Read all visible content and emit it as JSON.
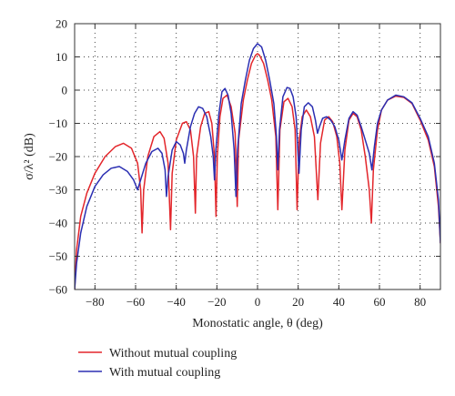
{
  "chart_data": {
    "type": "line",
    "xlabel": "Monostatic angle, θ (deg)",
    "ylabel": "σ/λ² (dB)",
    "xlim": [
      -90,
      90
    ],
    "ylim": [
      -60,
      20
    ],
    "xticks": [
      -80,
      -60,
      -40,
      -20,
      0,
      20,
      40,
      60,
      80
    ],
    "yticks": [
      20,
      10,
      0,
      -10,
      -20,
      -30,
      -40,
      -50,
      -60
    ],
    "xtick_labels": [
      "−80",
      "−60",
      "−40",
      "−20",
      "0",
      "20",
      "40",
      "60",
      "80"
    ],
    "ytick_labels": [
      "20",
      "10",
      "0",
      "−10",
      "−20",
      "−30",
      "−40",
      "−50",
      "−60"
    ],
    "grid": "dotted",
    "legend_position": "below plot, left",
    "series": [
      {
        "name": "Without mutual coupling",
        "color": "#e3262b",
        "points": [
          [
            -90,
            -60
          ],
          [
            -89,
            -48
          ],
          [
            -87,
            -38
          ],
          [
            -84,
            -31
          ],
          [
            -80,
            -25
          ],
          [
            -75,
            -20
          ],
          [
            -70,
            -17
          ],
          [
            -66,
            -16
          ],
          [
            -62,
            -17.5
          ],
          [
            -59,
            -22
          ],
          [
            -57.5,
            -30
          ],
          [
            -56.8,
            -43
          ],
          [
            -56,
            -30
          ],
          [
            -54,
            -20
          ],
          [
            -51,
            -14
          ],
          [
            -48,
            -12.5
          ],
          [
            -46,
            -14.5
          ],
          [
            -44,
            -22
          ],
          [
            -42.8,
            -42
          ],
          [
            -42,
            -25
          ],
          [
            -40,
            -15
          ],
          [
            -37,
            -10
          ],
          [
            -35,
            -9.5
          ],
          [
            -33,
            -12
          ],
          [
            -31.5,
            -20
          ],
          [
            -30.6,
            -37
          ],
          [
            -30,
            -20
          ],
          [
            -28,
            -11
          ],
          [
            -26,
            -7
          ],
          [
            -24,
            -6.5
          ],
          [
            -22.5,
            -10
          ],
          [
            -21.2,
            -20
          ],
          [
            -20.4,
            -38
          ],
          [
            -19.8,
            -20
          ],
          [
            -18.5,
            -8
          ],
          [
            -17,
            -2.5
          ],
          [
            -15,
            -1.5
          ],
          [
            -13,
            -5
          ],
          [
            -11,
            -13
          ],
          [
            -10,
            -35
          ],
          [
            -9.3,
            -15
          ],
          [
            -7,
            -3
          ],
          [
            -5,
            3
          ],
          [
            -3,
            8
          ],
          [
            -1,
            10.5
          ],
          [
            0,
            11
          ],
          [
            1,
            10.5
          ],
          [
            3,
            8
          ],
          [
            5,
            3
          ],
          [
            7,
            -3
          ],
          [
            9,
            -14
          ],
          [
            10,
            -36
          ],
          [
            11,
            -12
          ],
          [
            13,
            -3.5
          ],
          [
            15,
            -2.5
          ],
          [
            17,
            -5
          ],
          [
            18.5,
            -12
          ],
          [
            19.5,
            -36
          ],
          [
            20.5,
            -15
          ],
          [
            22,
            -8
          ],
          [
            24,
            -6
          ],
          [
            26,
            -8
          ],
          [
            28,
            -14
          ],
          [
            29.7,
            -33
          ],
          [
            31,
            -16
          ],
          [
            33,
            -9
          ],
          [
            35,
            -8
          ],
          [
            37,
            -9.5
          ],
          [
            39,
            -14
          ],
          [
            40.5,
            -22
          ],
          [
            41.5,
            -36
          ],
          [
            43,
            -18
          ],
          [
            45,
            -9
          ],
          [
            47,
            -7
          ],
          [
            49,
            -8
          ],
          [
            51,
            -12
          ],
          [
            53,
            -20
          ],
          [
            55,
            -30
          ],
          [
            56,
            -40
          ],
          [
            57,
            -24
          ],
          [
            59,
            -12
          ],
          [
            61,
            -6
          ],
          [
            64,
            -3
          ],
          [
            68,
            -1.8
          ],
          [
            72,
            -2.2
          ],
          [
            76,
            -4
          ],
          [
            80,
            -9
          ],
          [
            84,
            -15
          ],
          [
            87,
            -23
          ],
          [
            89,
            -35
          ],
          [
            90,
            -46
          ]
        ]
      },
      {
        "name": "With mutual coupling",
        "color": "#2b2fb2",
        "points": [
          [
            -90,
            -60
          ],
          [
            -89,
            -52
          ],
          [
            -87,
            -43
          ],
          [
            -84,
            -35
          ],
          [
            -80,
            -29
          ],
          [
            -76,
            -25.5
          ],
          [
            -72,
            -23.5
          ],
          [
            -68,
            -23
          ],
          [
            -64,
            -24.5
          ],
          [
            -61,
            -27
          ],
          [
            -59,
            -30
          ],
          [
            -57,
            -26
          ],
          [
            -55,
            -22
          ],
          [
            -52,
            -18.5
          ],
          [
            -49,
            -17.5
          ],
          [
            -47,
            -19
          ],
          [
            -45.5,
            -24
          ],
          [
            -44.8,
            -32
          ],
          [
            -44,
            -26
          ],
          [
            -42,
            -18
          ],
          [
            -40,
            -15.5
          ],
          [
            -38,
            -16.5
          ],
          [
            -36.5,
            -19
          ],
          [
            -35.8,
            -22
          ],
          [
            -35,
            -18
          ],
          [
            -33,
            -11
          ],
          [
            -31,
            -7
          ],
          [
            -29,
            -5
          ],
          [
            -27,
            -5.5
          ],
          [
            -25,
            -8
          ],
          [
            -23,
            -14
          ],
          [
            -21.8,
            -20
          ],
          [
            -21.2,
            -27
          ],
          [
            -20.5,
            -18
          ],
          [
            -19,
            -7
          ],
          [
            -17.5,
            -0.5
          ],
          [
            -16,
            0.5
          ],
          [
            -14.5,
            -1.5
          ],
          [
            -13,
            -7
          ],
          [
            -11.5,
            -18
          ],
          [
            -10.6,
            -32
          ],
          [
            -9.8,
            -18
          ],
          [
            -8,
            -4
          ],
          [
            -6,
            3
          ],
          [
            -4,
            9
          ],
          [
            -2,
            12.5
          ],
          [
            0,
            14
          ],
          [
            2,
            13
          ],
          [
            4,
            9
          ],
          [
            6,
            3
          ],
          [
            8,
            -4
          ],
          [
            9.3,
            -14
          ],
          [
            10,
            -24
          ],
          [
            10.8,
            -12
          ],
          [
            12.5,
            -2
          ],
          [
            14.5,
            0.8
          ],
          [
            16,
            0.5
          ],
          [
            17.5,
            -2
          ],
          [
            19,
            -8
          ],
          [
            20.4,
            -25
          ],
          [
            21.5,
            -12
          ],
          [
            23,
            -5
          ],
          [
            25,
            -3.8
          ],
          [
            27,
            -5
          ],
          [
            28.5,
            -9
          ],
          [
            29.5,
            -13
          ],
          [
            30.5,
            -11
          ],
          [
            32,
            -8.5
          ],
          [
            34,
            -8
          ],
          [
            36,
            -9
          ],
          [
            38,
            -11
          ],
          [
            40,
            -15
          ],
          [
            41.5,
            -21
          ],
          [
            43,
            -15
          ],
          [
            45,
            -8.5
          ],
          [
            47,
            -6.5
          ],
          [
            49,
            -7.5
          ],
          [
            51,
            -11
          ],
          [
            53,
            -15
          ],
          [
            55,
            -19
          ],
          [
            56.3,
            -24
          ],
          [
            57.5,
            -17
          ],
          [
            59,
            -10
          ],
          [
            61,
            -6
          ],
          [
            64,
            -3
          ],
          [
            68,
            -1.5
          ],
          [
            72,
            -2
          ],
          [
            76,
            -3.8
          ],
          [
            80,
            -8.5
          ],
          [
            84,
            -14
          ],
          [
            87,
            -22
          ],
          [
            89,
            -33
          ],
          [
            90,
            -46
          ]
        ]
      }
    ]
  }
}
